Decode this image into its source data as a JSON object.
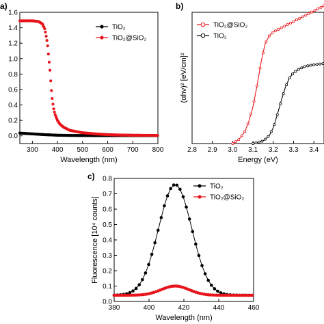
{
  "panel_labels": [
    "a)",
    "b)",
    "c)"
  ],
  "chart_data": [
    {
      "panel": "a)",
      "type": "scatter",
      "xlabel": "Wavelength (nm)",
      "ylabel": "",
      "xlim": [
        250,
        800
      ],
      "ylim": [
        -0.1,
        1.6
      ],
      "xticks": [
        "300",
        "400",
        "500",
        "600",
        "700",
        "800"
      ],
      "yticks": [
        "0.0",
        "0.2",
        "0.4",
        "0.6",
        "0.8",
        "1.0",
        "1.2",
        "1.4",
        "1.6"
      ],
      "legend_position": "top-right",
      "series": [
        {
          "name": "TiO₂",
          "color": "#000000",
          "x": [
            250,
            300,
            350,
            400,
            450,
            500,
            550,
            600,
            650,
            700,
            750,
            800
          ],
          "y": [
            0.035,
            0.025,
            0.015,
            0.008,
            0.005,
            0.004,
            0.003,
            0.003,
            0.003,
            0.003,
            0.003,
            0.003
          ]
        },
        {
          "name": "TiO₂@SiO₂",
          "color": "#e8141b",
          "x": [
            250,
            275,
            300,
            325,
            340,
            350,
            360,
            370,
            375,
            380,
            385,
            390,
            400,
            410,
            425,
            450,
            500,
            550,
            600,
            650,
            700,
            800
          ],
          "y": [
            1.49,
            1.49,
            1.49,
            1.48,
            1.45,
            1.38,
            1.2,
            0.85,
            0.62,
            0.45,
            0.35,
            0.28,
            0.2,
            0.15,
            0.11,
            0.07,
            0.04,
            0.025,
            0.015,
            0.01,
            0.008,
            0.005
          ]
        }
      ]
    },
    {
      "panel": "b)",
      "type": "line",
      "xlabel": "Energy (eV)",
      "ylabel": "(αhν)² [eV/cm]²",
      "xlim": [
        2.8,
        3.45
      ],
      "ylim": [
        0,
        1
      ],
      "xticks": [
        "2.8",
        "2.9",
        "3.0",
        "3.1",
        "3.2",
        "3.3",
        "3.4"
      ],
      "legend_position": "top-left",
      "series": [
        {
          "name": "TiO₂@SiO₂",
          "color": "#e8141b",
          "x": [
            3.0,
            3.03,
            3.06,
            3.08,
            3.1,
            3.12,
            3.14,
            3.16,
            3.18,
            3.2,
            3.25,
            3.3,
            3.35,
            3.4,
            3.45
          ],
          "y": [
            0.0,
            0.03,
            0.09,
            0.17,
            0.28,
            0.44,
            0.62,
            0.76,
            0.82,
            0.85,
            0.89,
            0.93,
            0.97,
            1.01,
            1.05
          ]
        },
        {
          "name": "TiO₂",
          "color": "#000000",
          "x": [
            3.1,
            3.15,
            3.18,
            3.2,
            3.22,
            3.24,
            3.26,
            3.28,
            3.3,
            3.33,
            3.36,
            3.4,
            3.45
          ],
          "y": [
            0.0,
            0.02,
            0.06,
            0.12,
            0.22,
            0.33,
            0.43,
            0.5,
            0.54,
            0.57,
            0.59,
            0.6,
            0.61
          ]
        }
      ]
    },
    {
      "panel": "c)",
      "type": "line",
      "xlabel": "Wavelength (nm)",
      "ylabel": "Fluorescence [10⁴ counts]",
      "xlim": [
        380,
        460
      ],
      "ylim": [
        0,
        0.8
      ],
      "xticks": [
        "380",
        "400",
        "420",
        "440",
        "460"
      ],
      "yticks": [
        "0.0",
        "0.1",
        "0.2",
        "0.3",
        "0.4",
        "0.5",
        "0.6",
        "0.7",
        "0.8"
      ],
      "legend_position": "top-right",
      "series": [
        {
          "name": "TiO₂",
          "color": "#000000",
          "peak_x": 415,
          "peak_y": 0.76,
          "baseline": 0.04,
          "sigma": 9.5,
          "x_start": 380,
          "x_end": 460,
          "step": 1.8
        },
        {
          "name": "TiO₂@SiO₂",
          "color": "#e8141b",
          "peak_x": 415,
          "peak_y": 0.1,
          "baseline": 0.04,
          "sigma": 8,
          "x_start": 380,
          "x_end": 460,
          "step": 1.2
        }
      ]
    }
  ]
}
